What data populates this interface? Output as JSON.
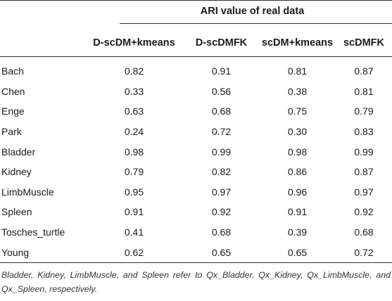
{
  "table": {
    "group_header": "ARI value of real data",
    "columns": [
      "D-scDM+kmeans",
      "D-scDMFK",
      "scDM+kmeans",
      "scDMFK"
    ],
    "rows": [
      {
        "label": "Bach",
        "values": [
          "0.82",
          "0.91",
          "0.81",
          "0.87"
        ]
      },
      {
        "label": "Chen",
        "values": [
          "0.33",
          "0.56",
          "0.38",
          "0.81"
        ]
      },
      {
        "label": "Enge",
        "values": [
          "0.63",
          "0.68",
          "0.75",
          "0.79"
        ]
      },
      {
        "label": "Park",
        "values": [
          "0.24",
          "0.72",
          "0.30",
          "0.83"
        ]
      },
      {
        "label": "Bladder",
        "values": [
          "0.98",
          "0.99",
          "0.98",
          "0.99"
        ]
      },
      {
        "label": "Kidney",
        "values": [
          "0.79",
          "0.82",
          "0.86",
          "0.87"
        ]
      },
      {
        "label": "LimbMuscle",
        "values": [
          "0.95",
          "0.97",
          "0.96",
          "0.97"
        ]
      },
      {
        "label": "Spleen",
        "values": [
          "0.91",
          "0.92",
          "0.91",
          "0.92"
        ]
      },
      {
        "label": "Tosches_turtle",
        "values": [
          "0.41",
          "0.68",
          "0.39",
          "0.68"
        ]
      },
      {
        "label": "Young",
        "values": [
          "0.62",
          "0.65",
          "0.65",
          "0.72"
        ]
      }
    ]
  },
  "footnote": "Bladder, Kidney, LimbMuscle, and Spleen refer to Qx_Bladder, Qx_Kidney, Qx_LimbMuscle, and Qx_Spleen, respectively."
}
